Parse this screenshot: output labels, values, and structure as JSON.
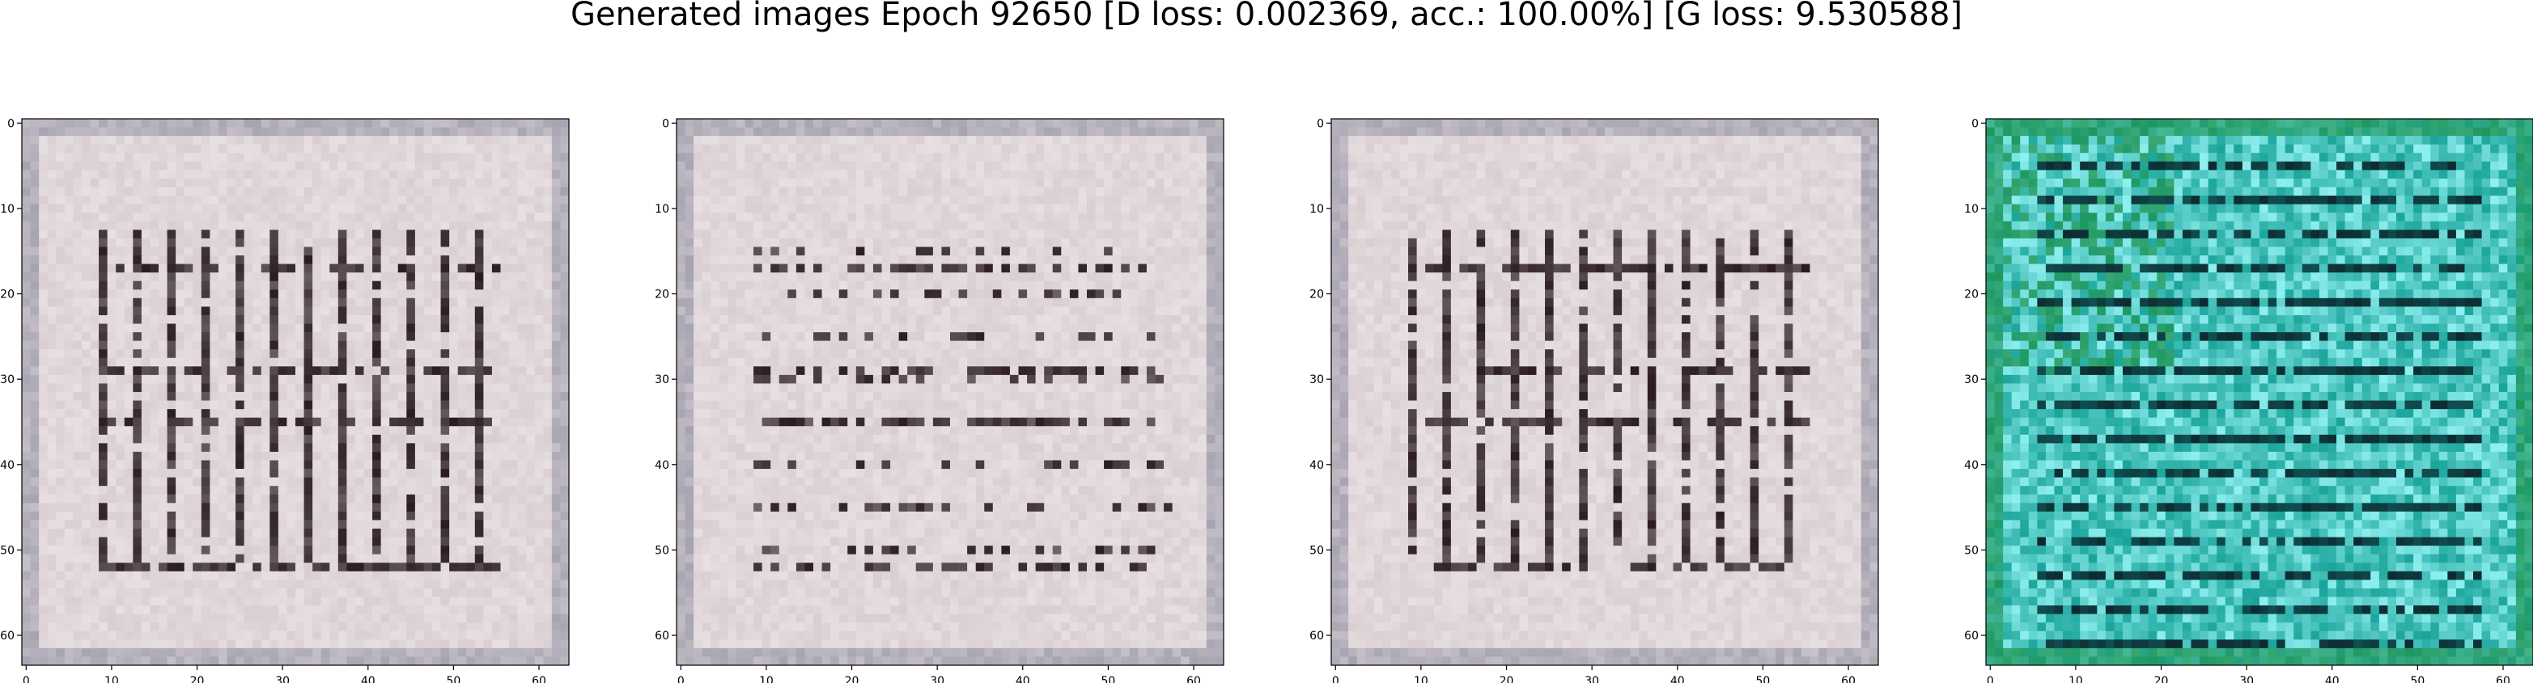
{
  "figure": {
    "title": "Generated images Epoch 92650 [D loss: 0.002369, acc.: 100.00%] [G loss: 9.530588]"
  },
  "panels": [
    {
      "palette": "greyish-pink",
      "xticks": [
        "0",
        "10",
        "20",
        "30",
        "40",
        "50",
        "60"
      ],
      "yticks": [
        "0",
        "10",
        "20",
        "30",
        "40",
        "50",
        "60"
      ]
    },
    {
      "palette": "greyish-pink",
      "xticks": [
        "0",
        "10",
        "20",
        "30",
        "40",
        "50",
        "60"
      ],
      "yticks": [
        "0",
        "10",
        "20",
        "30",
        "40",
        "50",
        "60"
      ]
    },
    {
      "palette": "greyish-pink",
      "xticks": [
        "0",
        "10",
        "20",
        "30",
        "40",
        "50",
        "60"
      ],
      "yticks": [
        "0",
        "10",
        "20",
        "30",
        "40",
        "50",
        "60"
      ]
    },
    {
      "palette": "teal-cyan",
      "xticks": [
        "0",
        "10",
        "20",
        "30",
        "40",
        "50",
        "60"
      ],
      "yticks": [
        "0",
        "10",
        "20",
        "30",
        "40",
        "50",
        "60"
      ]
    }
  ],
  "colors": {
    "greyish-pink": {
      "base": "#d9cfd2",
      "dark": "#2a1c22",
      "light": "#f2eaee",
      "accent": "#8a8a9c"
    },
    "teal-cyan": {
      "base": "#1aa49a",
      "dark": "#0c2a30",
      "light": "#8ff0f0",
      "accent": "#1f8f3e"
    }
  }
}
